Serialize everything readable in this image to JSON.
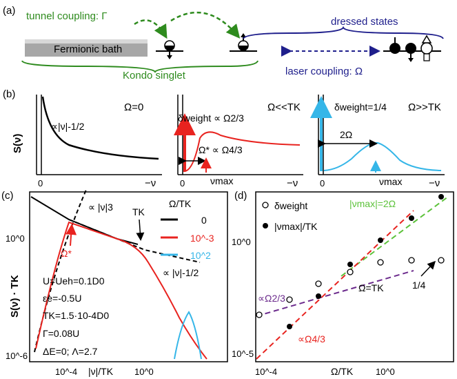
{
  "panel_a": {
    "label": "(a)",
    "tunnel_label": "tunnel coupling: Γ",
    "bath_label": "Fermionic bath",
    "dressed_label": "dressed states",
    "kondo_label": "Kondo singlet",
    "laser_label": "laser coupling: Ω",
    "colors": {
      "green": "#2e8b1e",
      "blue": "#1f1f8c",
      "box": "#9a9a9a"
    }
  },
  "panel_b": {
    "label": "(b)",
    "ylabel": "S(ν)",
    "sub1": {
      "title": "Ω=0",
      "annotation": "∝|ν|-1/2",
      "xtick": "0",
      "xend": "−ν"
    },
    "sub2": {
      "title": "Ω<<TK",
      "weight": "δweight ∝ Ω2/3",
      "omega_star": "Ω* ∝ Ω4/3",
      "numax": "νmax",
      "xtick": "0",
      "xend": "−ν"
    },
    "sub3": {
      "title": "Ω>>TK",
      "weight": "δweight=1/4",
      "width": "2Ω",
      "numax": "νmax",
      "xtick": "0",
      "xend": "−ν"
    }
  },
  "panel_c": {
    "label": "(c)",
    "ylabel": "S(ν) · TK",
    "xlabel": "|ν|/TK",
    "yticks": [
      "10^0",
      "10^-6"
    ],
    "xticks": [
      "10^-4",
      "10^0"
    ],
    "legend_title": "Ω/TK",
    "legend": [
      {
        "label": "0",
        "color": "#000000"
      },
      {
        "label": "10^-3",
        "color": "#e8231f"
      },
      {
        "label": "10^2",
        "color": "#35b6e8"
      }
    ],
    "ann_nu3": "∝ |ν|3",
    "ann_tk": "TK",
    "ann_omega_star": "Ω*",
    "ann_nu_half": "∝ |ν|-1/2",
    "params": [
      "U=Ueh=0.1D0",
      "εe=-0.5U",
      "TK=1.5·10-4D0",
      "Γ=0.08U",
      "ΔE=0;  Λ=2.7"
    ]
  },
  "panel_d": {
    "label": "(d)",
    "xlabel": "Ω/TK",
    "yticks": [
      "10^0",
      "10^-5"
    ],
    "xticks": [
      "10^-4",
      "10^0"
    ],
    "legend": [
      "δweight",
      "|νmax|/TK"
    ],
    "ann_numax": "|νmax|=2Ω",
    "ann_w23": "∝Ω2/3",
    "ann_w43": "∝Ω4/3",
    "ann_tk": "Ω=TK",
    "ann_quarter": "1/4",
    "colors": {
      "green": "#5cc23a",
      "purple": "#6b2a8c",
      "red": "#e8231f"
    }
  }
}
